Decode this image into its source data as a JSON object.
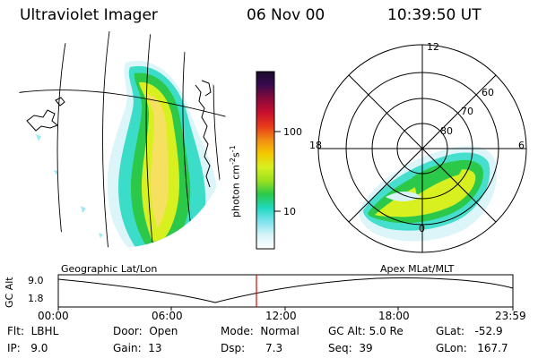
{
  "header": {
    "title": "Ultraviolet Imager",
    "date": "06 Nov 00",
    "time": "10:39:50 UT"
  },
  "colorbar": {
    "unit_label": "photon cm",
    "unit_exp1": "-2",
    "unit_mid": "s",
    "unit_exp2": "-1",
    "ticks": [
      "100",
      "10"
    ],
    "colors": [
      "#1a0a2e",
      "#3a0a4e",
      "#8a0a3a",
      "#c8102e",
      "#e63a1a",
      "#f08a14",
      "#f5c800",
      "#d8f020",
      "#9be01e",
      "#2bc84a",
      "#20d8c0",
      "#7fe3ee",
      "#d8f4f8",
      "#ffffff"
    ]
  },
  "left_map": {
    "label": "Geographic Lat/Lon"
  },
  "right_map": {
    "label": "Apex MLat/MLT",
    "mlt_labels": {
      "top": "12",
      "left": "18",
      "right": "6",
      "bottom": "0"
    },
    "lat_labels": [
      "60",
      "70",
      "80"
    ]
  },
  "altitude_plot": {
    "axis_label": "GC Alt",
    "y_ticks": [
      "9.0",
      "1.8"
    ],
    "x_ticks": [
      "00:00",
      "06:00",
      "12:00",
      "18:00",
      "23:59"
    ],
    "marker_color": "#e00000"
  },
  "status": {
    "flt_label": "Flt:",
    "flt_value": "LBHL",
    "ip_label": "IP:",
    "ip_value": "9.0",
    "door_label": "Door:",
    "door_value": "Open",
    "gain_label": "Gain:",
    "gain_value": "13",
    "mode_label": "Mode:",
    "mode_value": "Normal",
    "dsp_label": "Dsp:",
    "dsp_value": "7.3",
    "gcalt_label": "GC Alt:",
    "gcalt_value": "5.0 Re",
    "seq_label": "Seq:",
    "seq_value": "39",
    "glat_label": "GLat:",
    "glat_value": "-52.9",
    "glon_label": "GLon:",
    "glon_value": "167.7"
  }
}
